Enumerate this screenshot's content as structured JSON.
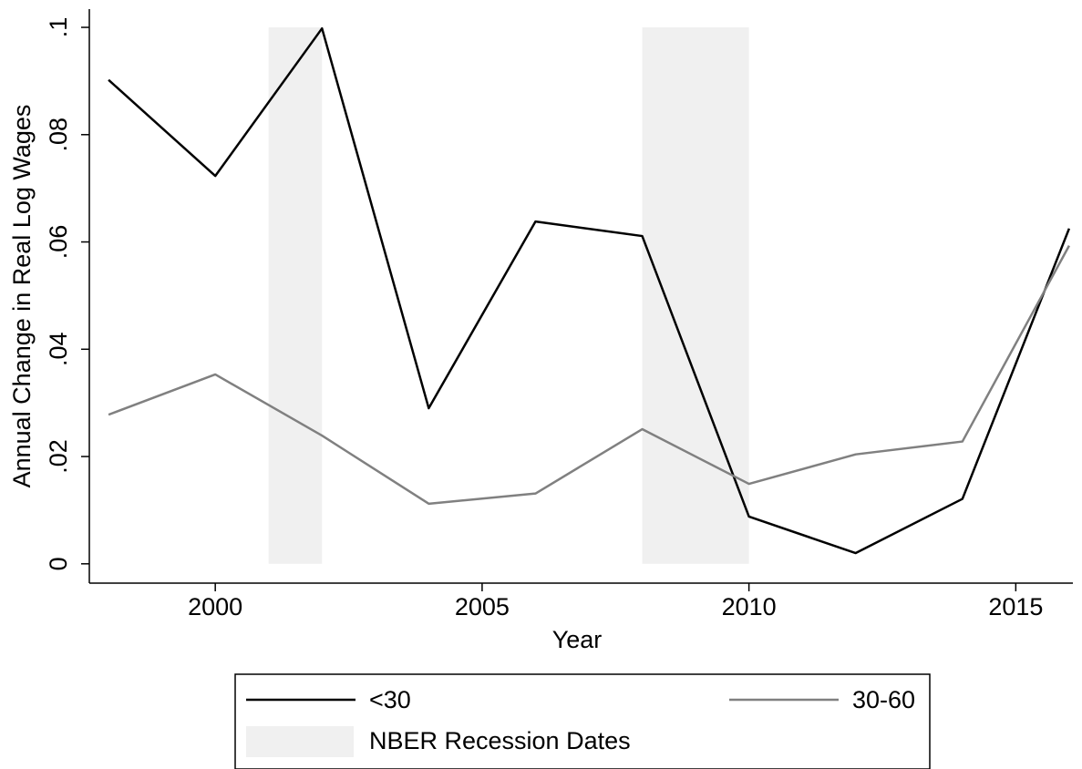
{
  "chart_data": {
    "type": "line",
    "x_label": "Year",
    "y_label": "Annual Change in Real Log Wages",
    "x": [
      1998,
      2000,
      2002,
      2004,
      2006,
      2008,
      2010,
      2012,
      2014,
      2016
    ],
    "series": [
      {
        "name": "<30",
        "color": "#000000",
        "values": [
          0.0902,
          0.0723,
          0.0998,
          0.029,
          0.0638,
          0.0611,
          0.0088,
          0.002,
          0.0121,
          0.0625
        ]
      },
      {
        "name": "30-60",
        "color": "#808080",
        "values": [
          0.0278,
          0.0353,
          0.0239,
          0.0112,
          0.0131,
          0.0251,
          0.0149,
          0.0204,
          0.0228,
          0.0593
        ]
      }
    ],
    "recessions": {
      "name": "NBER Recession Dates",
      "color": "#f0f0f0",
      "value": 0.1,
      "periods": [
        [
          2001,
          2002
        ],
        [
          2008,
          2010
        ]
      ]
    },
    "xlim": [
      1997.64,
      2016.07
    ],
    "xticks": [
      2000,
      2005,
      2010,
      2015
    ],
    "ylim": [
      -0.0036,
      0.1034
    ],
    "yticks": [
      0,
      {
        "value": 0.02,
        "label": ".02"
      },
      {
        "value": 0.04,
        "label": ".04"
      },
      {
        "value": 0.06,
        "label": ".06"
      },
      {
        "value": 0.08,
        "label": ".08"
      },
      {
        "value": 0.1,
        "label": ".1"
      }
    ],
    "grid": false
  }
}
